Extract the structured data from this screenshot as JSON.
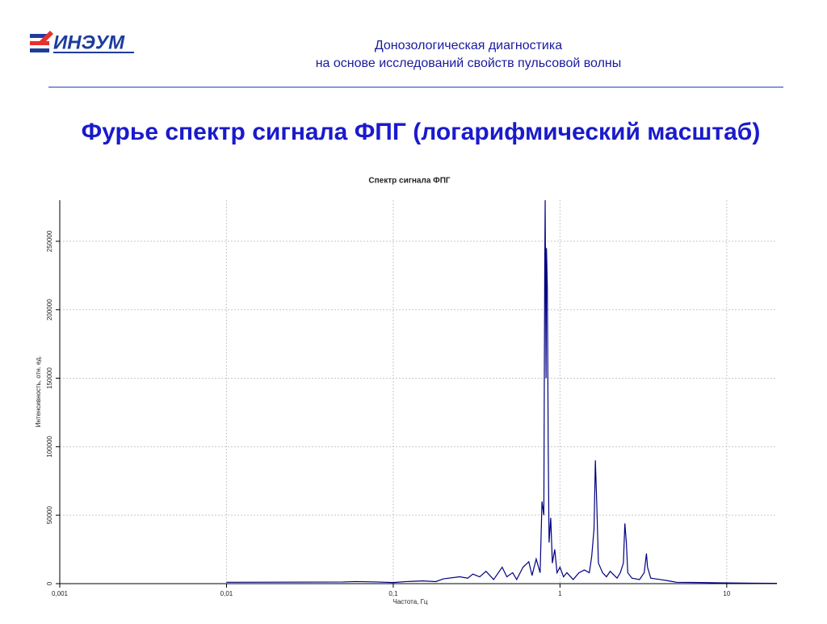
{
  "logo": "ИНЭУМ",
  "header": {
    "line1": "Донозологическая диагностика",
    "line2": "на основе исследований свойств пульсовой волны"
  },
  "heading": "Фурье спектр сигнала ФПГ (логарифмический масштаб)",
  "chart_data": {
    "type": "line",
    "title": "Спектр сигнала ФПГ",
    "x_label": "Частота, Гц",
    "y_label": "Интенсивность, отн. ед.",
    "x_log": true,
    "grid": true,
    "xlim": [
      0.001,
      20
    ],
    "ylim": [
      0,
      280000
    ],
    "xticks": [
      {
        "value": 0.001,
        "label": "0,001"
      },
      {
        "value": 0.01,
        "label": "0,01"
      },
      {
        "value": 0.1,
        "label": "0,1"
      },
      1,
      10
    ],
    "yticks": [
      0,
      50000,
      100000,
      150000,
      200000,
      250000
    ],
    "series": [
      {
        "name": "Спектр",
        "color": "#000080",
        "x": [
          0.01,
          0.05,
          0.06,
          0.08,
          0.1,
          0.12,
          0.15,
          0.18,
          0.2,
          0.25,
          0.28,
          0.3,
          0.33,
          0.36,
          0.4,
          0.45,
          0.48,
          0.52,
          0.55,
          0.6,
          0.65,
          0.68,
          0.72,
          0.76,
          0.78,
          0.8,
          0.81,
          0.815,
          0.825,
          0.83,
          0.84,
          0.85,
          0.86,
          0.88,
          0.9,
          0.93,
          0.96,
          1.0,
          1.05,
          1.1,
          1.2,
          1.3,
          1.4,
          1.5,
          1.55,
          1.6,
          1.63,
          1.66,
          1.7,
          1.8,
          1.9,
          2.0,
          2.2,
          2.3,
          2.4,
          2.45,
          2.5,
          2.55,
          2.7,
          3.0,
          3.2,
          3.3,
          3.35,
          3.5,
          4.0,
          4.5,
          5,
          7,
          10,
          15,
          20
        ],
        "values": [
          1000,
          1200,
          1500,
          1200,
          800,
          1500,
          2000,
          1500,
          3500,
          5000,
          4000,
          7000,
          5000,
          9000,
          3000,
          12000,
          5000,
          8000,
          3000,
          12000,
          16000,
          6000,
          18000,
          8000,
          60000,
          50000,
          230000,
          280000,
          150000,
          245000,
          215000,
          100000,
          30000,
          48000,
          15000,
          25000,
          8000,
          12000,
          5000,
          8000,
          3000,
          8000,
          10000,
          8000,
          20000,
          40000,
          90000,
          60000,
          15000,
          8000,
          5000,
          9000,
          4000,
          8000,
          15000,
          44000,
          30000,
          8000,
          4000,
          3000,
          8000,
          22000,
          12000,
          4000,
          3000,
          2000,
          1000,
          800,
          500,
          300,
          200
        ]
      }
    ]
  }
}
